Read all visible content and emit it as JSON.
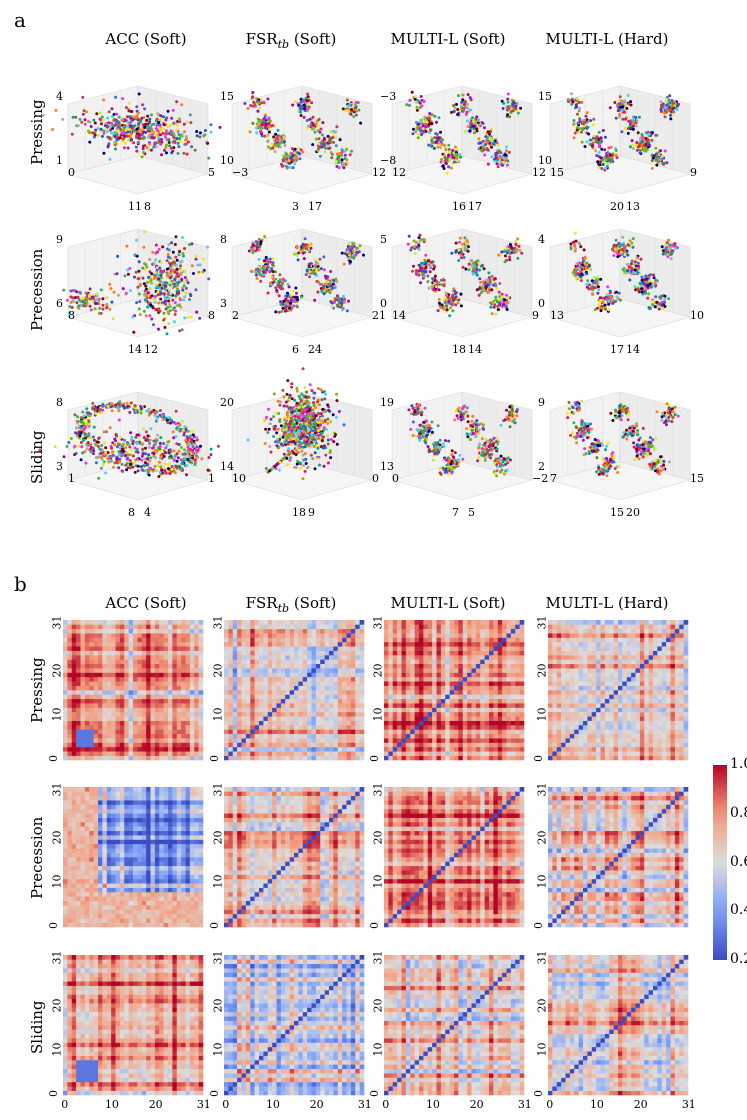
{
  "panels": {
    "a": "a",
    "b": "b"
  },
  "column_titles": [
    {
      "base": "ACC",
      "sub": "",
      "suffix": " (Soft)"
    },
    {
      "base": "FSR",
      "sub": "tb",
      "suffix": " (Soft)"
    },
    {
      "base": "MULTI-L",
      "sub": "",
      "suffix": " (Soft)"
    },
    {
      "base": "MULTI-L",
      "sub": "",
      "suffix": " (Hard)"
    }
  ],
  "row_titles": [
    "Pressing",
    "Precession",
    "Sliding"
  ],
  "chart_data": [
    {
      "type": "scatter",
      "kind": "3d-embedding-grid",
      "rows": [
        "Pressing",
        "Precession",
        "Sliding"
      ],
      "columns": [
        "ACC (Soft)",
        "FSR_tb (Soft)",
        "MULTI-L (Soft)",
        "MULTI-L (Hard)"
      ],
      "grid": true,
      "cells": [
        {
          "row": "Pressing",
          "col": "ACC (Soft)",
          "z_ticks": [
            "4",
            "1"
          ],
          "x_ticks": [
            "0",
            "11"
          ],
          "y_ticks": [
            "8",
            "5"
          ],
          "pattern": "blob"
        },
        {
          "row": "Pressing",
          "col": "FSR_tb (Soft)",
          "z_ticks": [
            "15",
            "10"
          ],
          "x_ticks": [
            "−3",
            "3"
          ],
          "y_ticks": [
            "17",
            "12"
          ],
          "pattern": "clusters"
        },
        {
          "row": "Pressing",
          "col": "MULTI-L (Soft)",
          "z_ticks": [
            "−3",
            "−8"
          ],
          "x_ticks": [
            "12",
            "16"
          ],
          "y_ticks": [
            "17",
            "12"
          ],
          "pattern": "clusters"
        },
        {
          "row": "Pressing",
          "col": "MULTI-L (Hard)",
          "z_ticks": [
            "15",
            "10"
          ],
          "x_ticks": [
            "15",
            "20"
          ],
          "y_ticks": [
            "13",
            "9"
          ],
          "pattern": "clusters"
        },
        {
          "row": "Precession",
          "col": "ACC (Soft)",
          "z_ticks": [
            "9",
            "6"
          ],
          "x_ticks": [
            "8",
            "14"
          ],
          "y_ticks": [
            "12",
            "8"
          ],
          "pattern": "two-blobs"
        },
        {
          "row": "Precession",
          "col": "FSR_tb (Soft)",
          "z_ticks": [
            "8",
            "3"
          ],
          "x_ticks": [
            "2",
            "6"
          ],
          "y_ticks": [
            "24",
            "21"
          ],
          "pattern": "clusters"
        },
        {
          "row": "Precession",
          "col": "MULTI-L (Soft)",
          "z_ticks": [
            "5",
            "0"
          ],
          "x_ticks": [
            "14",
            "18"
          ],
          "y_ticks": [
            "14",
            "9"
          ],
          "pattern": "clusters"
        },
        {
          "row": "Precession",
          "col": "MULTI-L (Hard)",
          "z_ticks": [
            "4",
            "0"
          ],
          "x_ticks": [
            "13",
            "17"
          ],
          "y_ticks": [
            "14",
            "10"
          ],
          "pattern": "clusters"
        },
        {
          "row": "Sliding",
          "col": "ACC (Soft)",
          "z_ticks": [
            "8",
            "3"
          ],
          "x_ticks": [
            "1",
            "8"
          ],
          "y_ticks": [
            "4",
            "1"
          ],
          "pattern": "ring"
        },
        {
          "row": "Sliding",
          "col": "FSR_tb (Soft)",
          "z_ticks": [
            "20",
            "14"
          ],
          "x_ticks": [
            "10",
            "18"
          ],
          "y_ticks": [
            "9",
            "0"
          ],
          "pattern": "dense-center"
        },
        {
          "row": "Sliding",
          "col": "MULTI-L (Soft)",
          "z_ticks": [
            "19",
            "13"
          ],
          "x_ticks": [
            "0",
            "7"
          ],
          "y_ticks": [
            "5",
            "−2"
          ],
          "pattern": "clusters"
        },
        {
          "row": "Sliding",
          "col": "MULTI-L (Hard)",
          "z_ticks": [
            "9",
            "2"
          ],
          "x_ticks": [
            "7",
            "15"
          ],
          "y_ticks": [
            "20",
            "15"
          ],
          "pattern": "clusters"
        }
      ]
    },
    {
      "type": "heatmap",
      "rows": [
        "Pressing",
        "Precession",
        "Sliding"
      ],
      "columns": [
        "ACC (Soft)",
        "FSR_tb (Soft)",
        "MULTI-L (Soft)",
        "MULTI-L (Hard)"
      ],
      "matrix_size": 32,
      "x_ticks": [
        "0",
        "10",
        "20",
        "31"
      ],
      "y_ticks": [
        "31",
        "20",
        "10",
        "0"
      ],
      "colorbar": {
        "min": 0.2,
        "max": 1.0,
        "ticks": [
          "1.0",
          "0.8",
          "0.6",
          "0.4",
          "0.2"
        ],
        "colormap": "coolwarm"
      },
      "cells": [
        {
          "row": "Pressing",
          "col": "ACC (Soft)",
          "mean": 0.78,
          "block_low": [
            3,
            6
          ]
        },
        {
          "row": "Pressing",
          "col": "FSR_tb (Soft)",
          "mean": 0.7,
          "diag": true
        },
        {
          "row": "Pressing",
          "col": "MULTI-L (Soft)",
          "mean": 0.72,
          "diag": true
        },
        {
          "row": "Pressing",
          "col": "MULTI-L (Hard)",
          "mean": 0.62,
          "diag": true
        },
        {
          "row": "Precession",
          "col": "ACC (Soft)",
          "mean": 0.4,
          "block_high": [
            0,
            7
          ]
        },
        {
          "row": "Precession",
          "col": "FSR_tb (Soft)",
          "mean": 0.68,
          "diag": true
        },
        {
          "row": "Precession",
          "col": "MULTI-L (Soft)",
          "mean": 0.74,
          "diag": true
        },
        {
          "row": "Precession",
          "col": "MULTI-L (Hard)",
          "mean": 0.66,
          "diag": true
        },
        {
          "row": "Sliding",
          "col": "ACC (Soft)",
          "mean": 0.7,
          "block_low": [
            3,
            7
          ]
        },
        {
          "row": "Sliding",
          "col": "FSR_tb (Soft)",
          "mean": 0.55,
          "diag": true
        },
        {
          "row": "Sliding",
          "col": "MULTI-L (Soft)",
          "mean": 0.68,
          "diag": true
        },
        {
          "row": "Sliding",
          "col": "MULTI-L (Hard)",
          "mean": 0.62,
          "diag": true
        }
      ]
    }
  ]
}
